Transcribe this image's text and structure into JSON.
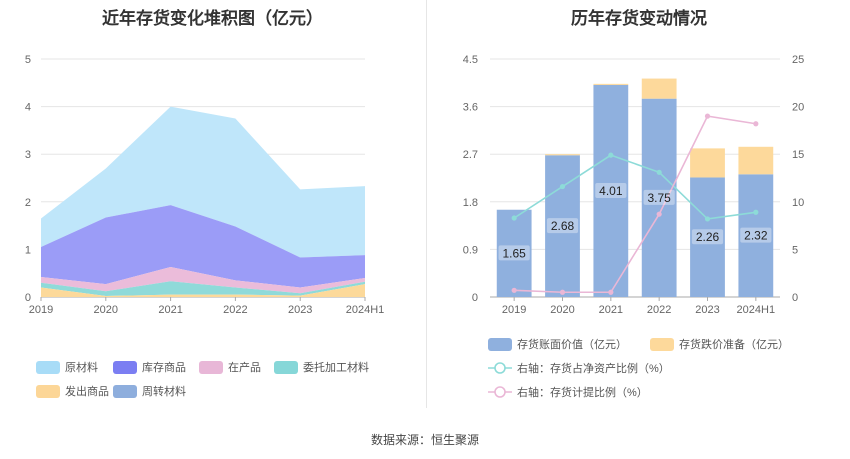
{
  "footer": "数据来源：恒生聚源",
  "chart_data": [
    {
      "type": "area",
      "title": "近年存货变化堆积图（亿元）",
      "categories": [
        "2019",
        "2020",
        "2021",
        "2022",
        "2023",
        "2024H1"
      ],
      "ylim": [
        0,
        5
      ],
      "yticks": [
        "0",
        "1",
        "2",
        "3",
        "4",
        "5"
      ],
      "grid": true,
      "series": [
        {
          "name": "发出商品",
          "color": "#fcd99a",
          "values": [
            0.2,
            0.02,
            0.05,
            0.05,
            0.03,
            0.27
          ]
        },
        {
          "name": "委托加工材料",
          "color": "#8fdad9",
          "values": [
            0.1,
            0.1,
            0.28,
            0.15,
            0.05,
            0.05
          ]
        },
        {
          "name": "在产品",
          "color": "#ebbcda",
          "values": [
            0.12,
            0.15,
            0.3,
            0.15,
            0.12,
            0.08
          ]
        },
        {
          "name": "库存商品",
          "color": "#9b9cf7",
          "values": [
            0.63,
            1.4,
            1.3,
            1.13,
            0.63,
            0.48
          ]
        },
        {
          "name": "原材料",
          "color": "#bfe6fa",
          "values": [
            0.6,
            1.03,
            2.07,
            2.27,
            1.43,
            1.45
          ]
        }
      ],
      "legend": [
        {
          "name": "原材料",
          "color": "#a8dcf7"
        },
        {
          "name": "库存商品",
          "color": "#7b7ef2"
        },
        {
          "name": "在产品",
          "color": "#e8b7d7"
        },
        {
          "name": "委托加工材料",
          "color": "#86d7d8"
        },
        {
          "name": "发出商品",
          "color": "#fcd697"
        },
        {
          "name": "周转材料",
          "color": "#8eaedd"
        }
      ]
    },
    {
      "type": "bar",
      "title": "历年存货变动情况",
      "categories": [
        "2019",
        "2020",
        "2021",
        "2022",
        "2023",
        "2024H1"
      ],
      "ylim": [
        0,
        4.5
      ],
      "yticks": [
        "0",
        "0.9",
        "1.8",
        "2.7",
        "3.6",
        "4.5"
      ],
      "y2lim": [
        0,
        25
      ],
      "y2ticks": [
        "0",
        "5",
        "10",
        "15",
        "20",
        "25"
      ],
      "grid": true,
      "series": [
        {
          "name": "存货账面价值（亿元）",
          "color": "#8fb0de",
          "axis": "left",
          "values": [
            1.65,
            2.68,
            4.01,
            3.75,
            2.26,
            2.32
          ],
          "labels": [
            "1.65",
            "2.68",
            "4.01",
            "3.75",
            "2.26",
            "2.32"
          ]
        },
        {
          "name": "存货跌价准备（亿元）",
          "color": "#fdd99b",
          "axis": "left",
          "values": [
            0.0,
            0.02,
            0.02,
            0.38,
            0.55,
            0.52
          ]
        },
        {
          "name": "右轴：存货占净资产比例（%）",
          "color": "#8ddbd8",
          "axis": "right",
          "type": "line",
          "values": [
            8.3,
            11.6,
            14.9,
            13.1,
            8.2,
            8.9
          ]
        },
        {
          "name": "右轴：存货计提比例（%）",
          "color": "#eab7d6",
          "axis": "right",
          "type": "line",
          "values": [
            0.7,
            0.5,
            0.5,
            8.7,
            19.0,
            18.2
          ]
        }
      ]
    }
  ]
}
